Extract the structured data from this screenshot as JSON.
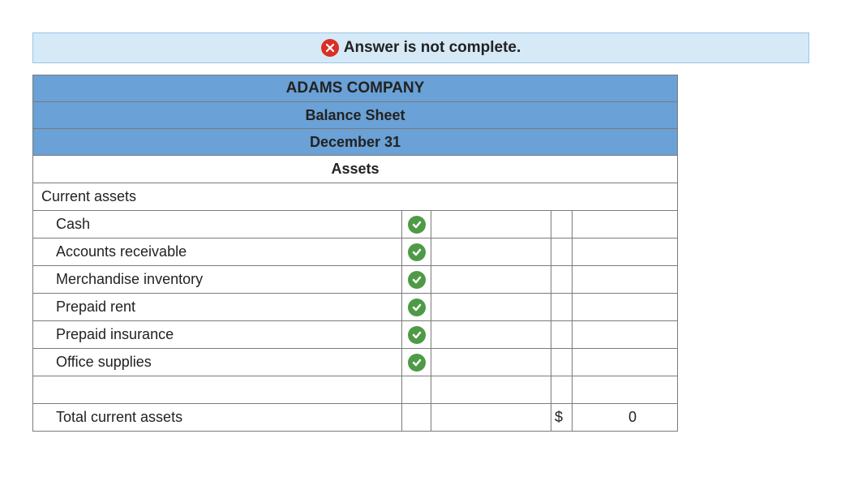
{
  "banner": {
    "text": "Answer is not complete."
  },
  "header": {
    "company": "ADAMS COMPANY",
    "title": "Balance Sheet",
    "date": "December 31"
  },
  "section_title": "Assets",
  "group_label": "Current assets",
  "items": [
    {
      "label": "Cash"
    },
    {
      "label": "Accounts receivable"
    },
    {
      "label": "Merchandise inventory"
    },
    {
      "label": "Prepaid rent"
    },
    {
      "label": "Prepaid insurance"
    },
    {
      "label": "Office supplies"
    }
  ],
  "total": {
    "label": "Total current assets",
    "currency": "$",
    "value": "0"
  }
}
